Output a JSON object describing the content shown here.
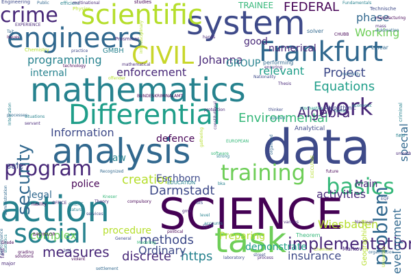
{
  "background": "#ffffff",
  "palette": {
    "dark_purple": "#440154",
    "purple": "#482878",
    "indigo": "#3e4a89",
    "blue": "#31688e",
    "teal_blue": "#26828e",
    "teal": "#1f9e89",
    "green": "#35b779",
    "light_green": "#6ece58",
    "lime": "#b5de2b",
    "yellow": "#c8d62a"
  },
  "words": [
    {
      "text": "data",
      "color": "#3e4a89"
    },
    {
      "text": "SCIENCE",
      "color": "#440154"
    },
    {
      "text": "action",
      "color": "#26828e"
    },
    {
      "text": "mathematics",
      "color": "#26828e"
    },
    {
      "text": "analysis",
      "color": "#31688e"
    },
    {
      "text": "system",
      "color": "#3e4a89"
    },
    {
      "text": "engineers",
      "color": "#31688e"
    },
    {
      "text": "scientific",
      "color": "#b5de2b"
    },
    {
      "text": "Frankfurt",
      "color": "#31688e"
    },
    {
      "text": "Differential",
      "color": "#1f9e89"
    },
    {
      "text": "CIVIL",
      "color": "#c8d62a"
    },
    {
      "text": "crime",
      "color": "#482878"
    },
    {
      "text": "problem",
      "color": "#31688e"
    },
    {
      "text": "program",
      "color": "#482878"
    },
    {
      "text": "task",
      "color": "#6ece58"
    },
    {
      "text": "social",
      "color": "#26828e"
    },
    {
      "text": "training",
      "color": "#6ece58"
    },
    {
      "text": "basics",
      "color": "#35b779"
    },
    {
      "text": "work",
      "color": "#482878"
    },
    {
      "text": "security",
      "color": "#31688e"
    },
    {
      "text": "implementation",
      "color": "#482878"
    },
    {
      "text": "measures",
      "color": "#482878"
    },
    {
      "text": "Environmental",
      "color": "#35b779"
    },
    {
      "text": "creation",
      "color": "#b5de2b"
    },
    {
      "text": "Darmstadt",
      "color": "#3e4a89"
    },
    {
      "text": "Algebra",
      "color": "#482878"
    },
    {
      "text": "Equations",
      "color": "#1f9e89"
    },
    {
      "text": "Project",
      "color": "#3e4a89"
    },
    {
      "text": "discrete",
      "color": "#482878"
    },
    {
      "text": "https",
      "color": "#26828e"
    },
    {
      "text": "methods",
      "color": "#3e4a89"
    },
    {
      "text": "Ordinary",
      "color": "#3e4a89"
    },
    {
      "text": "enforcement",
      "color": "#482878"
    },
    {
      "text": "Johanna",
      "color": "#482878"
    },
    {
      "text": "FEDERAL",
      "color": "#440154"
    },
    {
      "text": "numerical",
      "color": "#482878"
    },
    {
      "text": "programming",
      "color": "#26828e"
    },
    {
      "text": "Information",
      "color": "#3e4a89"
    },
    {
      "text": "complex",
      "color": "#6ece58"
    },
    {
      "text": "Wiesbaden",
      "color": "#b5de2b"
    },
    {
      "text": "insurance",
      "color": "#3e4a89"
    },
    {
      "text": "activities",
      "color": "#482878"
    },
    {
      "text": "police",
      "color": "#440154"
    },
    {
      "text": "Eschborn",
      "color": "#3e4a89"
    },
    {
      "text": "defence",
      "color": "#440154"
    },
    {
      "text": "development",
      "color": "#31688e"
    },
    {
      "text": "special",
      "color": "#31688e"
    },
    {
      "text": "Working",
      "color": "#6ece58"
    },
    {
      "text": "phase",
      "color": "#31688e"
    },
    {
      "text": "GROUP",
      "color": "#26828e"
    },
    {
      "text": "good",
      "color": "#482878"
    },
    {
      "text": "TRAINEE",
      "color": "#35b779"
    },
    {
      "text": "law",
      "color": "#26828e"
    },
    {
      "text": "legal",
      "color": "#31688e"
    },
    {
      "text": "sale",
      "color": "#3e4a89"
    },
    {
      "text": "internal",
      "color": "#26828e"
    },
    {
      "text": "relevant",
      "color": "#1f9e89"
    },
    {
      "text": "Main",
      "color": "#482878"
    },
    {
      "text": "procedure",
      "color": "#b5de2b"
    },
    {
      "text": "Preparing",
      "color": "#b5de2b"
    },
    {
      "text": "demonstrate",
      "color": "#1f9e89"
    },
    {
      "text": "GMBH",
      "color": "#26828e"
    },
    {
      "text": "Analytical",
      "color": "#3e4a89"
    },
    {
      "text": "solver",
      "color": "#31688e"
    },
    {
      "text": "performing",
      "color": "#31688e"
    },
    {
      "text": "Technische",
      "color": "#3e4a89"
    },
    {
      "text": "Algorithmic",
      "color": "#3e4a89"
    },
    {
      "text": "Linear",
      "color": "#31688e"
    },
    {
      "text": "Theorem",
      "color": "#35b779"
    },
    {
      "text": "Markov",
      "color": "#482878"
    },
    {
      "text": "CHUBB",
      "color": "#440154"
    },
    {
      "text": "Public",
      "color": "#31688e"
    },
    {
      "text": "efficient",
      "color": "#26828e"
    },
    {
      "text": "multinational",
      "color": "#482878"
    },
    {
      "text": "studies",
      "color": "#440154"
    },
    {
      "text": "Engineering",
      "color": "#3e4a89"
    },
    {
      "text": "Physics",
      "color": "#b5de2b"
    },
    {
      "text": "EXPERIENCE",
      "color": "#482878"
    },
    {
      "text": "Prosminar",
      "color": "#482878"
    },
    {
      "text": "interdisciplinary",
      "color": "#b5de2b"
    },
    {
      "text": "Chemistry",
      "color": "#b5de2b"
    },
    {
      "text": "practice",
      "color": "#3e4a89"
    },
    {
      "text": "technology",
      "color": "#440154"
    },
    {
      "text": "Integration",
      "color": "#26828e"
    },
    {
      "text": "processes",
      "color": "#31688e"
    },
    {
      "text": "situations",
      "color": "#26828e"
    },
    {
      "text": "servant",
      "color": "#482878"
    },
    {
      "text": "BUNDESKRIMINALAMT",
      "color": "#440154"
    },
    {
      "text": "Nationality",
      "color": "#3e4a89"
    },
    {
      "text": "thinker",
      "color": "#3e4a89"
    },
    {
      "text": "applied",
      "color": "#26828e"
    },
    {
      "text": "stochastics",
      "color": "#1f9e89"
    },
    {
      "text": "Thesis",
      "color": "#482878"
    },
    {
      "text": "mentality",
      "color": "#31688e"
    },
    {
      "text": "economic",
      "color": "#26828e"
    },
    {
      "text": "software",
      "color": "#35b779"
    },
    {
      "text": "strong",
      "color": "#26828e"
    },
    {
      "text": "EUROPEAN",
      "color": "#35b779"
    },
    {
      "text": "Recognized",
      "color": "#31688e"
    },
    {
      "text": "EDUCATION",
      "color": "#26828e"
    },
    {
      "text": "Kneser",
      "color": "#35b779"
    },
    {
      "text": "CLIENT",
      "color": "#26828e"
    },
    {
      "text": "Theory",
      "color": "#482878"
    },
    {
      "text": "BACHELOR",
      "color": "#440154"
    },
    {
      "text": "grading",
      "color": "#440154"
    },
    {
      "text": "statistics",
      "color": "#26828e"
    },
    {
      "text": "violent",
      "color": "#440154"
    },
    {
      "text": "settlement",
      "color": "#31688e"
    },
    {
      "text": "political",
      "color": "#440154"
    },
    {
      "text": "Modeling",
      "color": "#35b779"
    },
    {
      "text": "General",
      "color": "#3e4a89"
    },
    {
      "text": "laboratory",
      "color": "#3e4a89"
    },
    {
      "text": "Chemical",
      "color": "#b5de2b"
    },
    {
      "text": "organization",
      "color": "#31688e"
    },
    {
      "text": "future",
      "color": "#440154"
    },
    {
      "text": "Nassauer",
      "color": "#482878"
    },
    {
      "text": "EXECUTIVE",
      "color": "#b5de2b"
    },
    {
      "text": "ECTS",
      "color": "#3e4a89"
    },
    {
      "text": "accounts",
      "color": "#26828e"
    },
    {
      "text": "performance",
      "color": "#31688e"
    },
    {
      "text": "administration",
      "color": "#31688e"
    },
    {
      "text": "Grade",
      "color": "#440154"
    },
    {
      "text": "solutions",
      "color": "#440154"
    },
    {
      "text": "OFFICE",
      "color": "#482878"
    },
    {
      "text": "liability",
      "color": "#440154"
    },
    {
      "text": "services",
      "color": "#3e4a89"
    },
    {
      "text": "Natural",
      "color": "#26828e"
    },
    {
      "text": "bka",
      "color": "#26828e"
    },
    {
      "text": "automation",
      "color": "#31688e"
    },
    {
      "text": "manufacturing",
      "color": "#440154"
    },
    {
      "text": "Issues",
      "color": "#440154"
    },
    {
      "text": "Tait",
      "color": "#31688e"
    },
    {
      "text": "major",
      "color": "#482878"
    },
    {
      "text": "fast",
      "color": "#482878"
    },
    {
      "text": "Geographical",
      "color": "#b5de2b"
    },
    {
      "text": "criminal",
      "color": "#26828e"
    },
    {
      "text": "EQF",
      "color": "#3e4a89"
    },
    {
      "text": "smooth",
      "color": "#482878"
    },
    {
      "text": "field",
      "color": "#26828e"
    },
    {
      "text": "forms",
      "color": "#26828e"
    },
    {
      "text": "2nd",
      "color": "#3e4a89"
    },
    {
      "text": "GIS",
      "color": "#3e4a89"
    },
    {
      "text": "hands",
      "color": "#482878"
    },
    {
      "text": "mass",
      "color": "#482878"
    },
    {
      "text": "Fundamentals",
      "color": "#26828e"
    },
    {
      "text": "offender",
      "color": "#b5de2b"
    },
    {
      "text": "mathematical",
      "color": "#482878"
    },
    {
      "text": "gathering",
      "color": "#b5de2b"
    },
    {
      "text": "organized",
      "color": "#31688e"
    },
    {
      "text": "protection",
      "color": "#482878"
    },
    {
      "text": "ensuring",
      "color": "#482878"
    },
    {
      "text": "compulsory",
      "color": "#440154"
    },
    {
      "text": "constitutional",
      "color": "#482878"
    },
    {
      "text": "level",
      "color": "#26828e"
    },
    {
      "text": "street",
      "color": "#3e4a89"
    },
    {
      "text": "process",
      "color": "#482878"
    },
    {
      "text": "various",
      "color": "#482878"
    },
    {
      "text": "University",
      "color": "#b5de2b"
    },
    {
      "text": "gmx",
      "color": "#482878"
    }
  ]
}
